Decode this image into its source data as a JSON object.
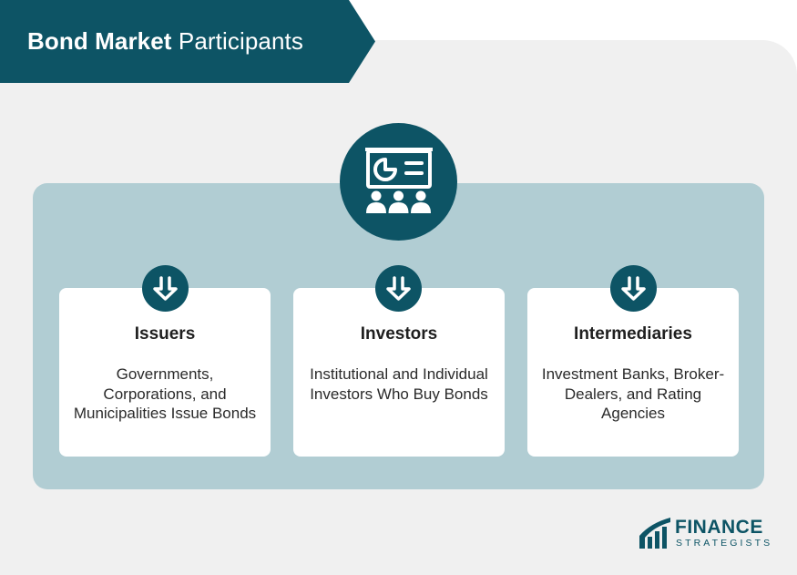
{
  "title": {
    "bold": "Bond Market",
    "light": "Participants"
  },
  "center_icon": "presentation-audience-icon",
  "participants": [
    {
      "title": "Issuers",
      "description": "Governments, Corporations, and Municipalities Issue Bonds",
      "icon": "arrow-down-icon"
    },
    {
      "title": "Investors",
      "description": "Institutional and Individual Investors Who Buy Bonds",
      "icon": "arrow-down-icon"
    },
    {
      "title": "Intermediaries",
      "description": "Investment Banks, Broker-Dealers, and Rating Agencies",
      "icon": "arrow-down-icon"
    }
  ],
  "logo": {
    "line1": "FINANCE",
    "line2": "STRATEGISTS"
  },
  "colors": {
    "primary": "#0d5465",
    "panel": "#b1cdd3",
    "background": "#f0f0f0",
    "card": "#ffffff"
  }
}
